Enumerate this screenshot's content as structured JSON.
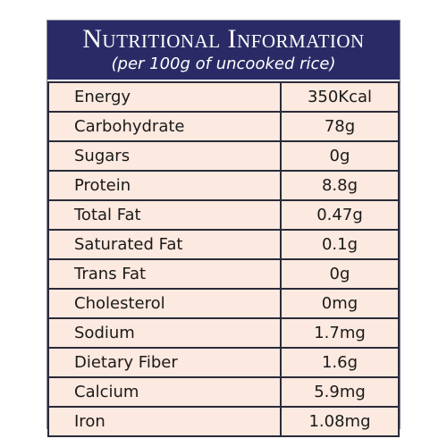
{
  "header": {
    "title": "Nutritional Information",
    "subtitle": "(per 100g of uncooked rice)"
  },
  "table": {
    "rows": [
      [
        "Energy",
        "350Kcal"
      ],
      [
        "Carbohydrate",
        "78g"
      ],
      [
        "Sugars",
        "0g"
      ],
      [
        "Protein",
        "8.8g"
      ],
      [
        "Total Fat",
        "0.47g"
      ],
      [
        "Saturated Fat",
        "0.1g"
      ],
      [
        "Trans Fat",
        "0g"
      ],
      [
        "Cholesterol",
        "0mg"
      ],
      [
        "Sodium",
        "1.7mg"
      ],
      [
        "Dietary Fiber",
        "1.6g"
      ],
      [
        "Calcium",
        "5.9mg"
      ],
      [
        "Iron",
        "1.08mg"
      ]
    ]
  }
}
